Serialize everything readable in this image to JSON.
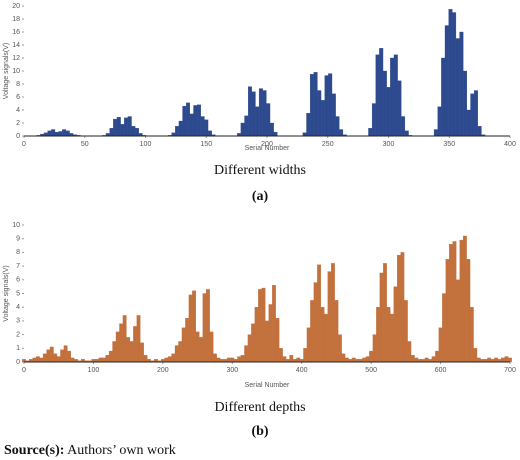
{
  "chart_data": [
    {
      "type": "bar",
      "x_label": "Serial Number",
      "y_label": "Voltage signals(V)",
      "caption": "Different widths",
      "panel": "(a)",
      "color": "#2e4a8e",
      "xlim": [
        0,
        400
      ],
      "xticks": [
        0,
        50,
        100,
        150,
        200,
        250,
        300,
        350,
        400
      ],
      "ylim": [
        0,
        20
      ],
      "yticks": [
        0,
        2,
        4,
        6,
        8,
        10,
        12,
        14,
        16,
        18,
        20
      ],
      "x": [
        0,
        3,
        6,
        9,
        12,
        15,
        18,
        21,
        24,
        27,
        30,
        33,
        36,
        39,
        42,
        45,
        48,
        51,
        54,
        57,
        60,
        63,
        66,
        69,
        72,
        75,
        78,
        81,
        84,
        87,
        90,
        93,
        96,
        99,
        102,
        105,
        108,
        111,
        114,
        117,
        120,
        123,
        126,
        129,
        132,
        135,
        138,
        141,
        144,
        147,
        150,
        153,
        156,
        159,
        162,
        165,
        168,
        171,
        174,
        177,
        180,
        183,
        186,
        189,
        192,
        195,
        198,
        201,
        204,
        207,
        210,
        213,
        216,
        219,
        222,
        225,
        228,
        231,
        234,
        237,
        240,
        243,
        246,
        249,
        252,
        255,
        258,
        261,
        264,
        267,
        270,
        273,
        276,
        279,
        282,
        285,
        288,
        291,
        294,
        297,
        300,
        303,
        306,
        309,
        312,
        315,
        318,
        321,
        324,
        327,
        330,
        333,
        336,
        339,
        342,
        345,
        348,
        351,
        354,
        357,
        360,
        363,
        366,
        369,
        372,
        375,
        378,
        381,
        384,
        387,
        390,
        393,
        396,
        399
      ],
      "values": [
        0,
        0,
        0,
        0,
        0.1,
        0.3,
        0.5,
        0.8,
        1.0,
        0.6,
        0.7,
        1.0,
        0.8,
        0.4,
        0.2,
        0.1,
        0,
        0,
        0,
        0,
        0,
        0,
        0.1,
        0.4,
        1.2,
        2.6,
        2.9,
        1.8,
        2.8,
        3.0,
        1.5,
        1.2,
        0.4,
        0.1,
        0,
        0,
        0,
        0,
        0,
        0,
        0.1,
        0.5,
        1.5,
        2.3,
        4.6,
        5.1,
        3.4,
        4.7,
        4.8,
        3.0,
        2.5,
        0.8,
        0.2,
        0,
        0,
        0,
        0,
        0,
        0,
        0.4,
        2.0,
        3.1,
        7.6,
        6.8,
        4.5,
        7.3,
        7.0,
        5.0,
        2.0,
        0.6,
        0,
        0,
        0,
        0,
        0,
        0,
        0,
        0.5,
        3.5,
        9.5,
        9.8,
        7.0,
        5.5,
        9.3,
        9.6,
        6.5,
        3.0,
        1.0,
        0.2,
        0,
        0,
        0,
        0,
        0,
        0,
        1.2,
        5.0,
        12.5,
        13.5,
        10.0,
        7.5,
        12.0,
        12.5,
        8.5,
        3.0,
        0.8,
        0.1,
        0,
        0,
        0,
        0,
        0,
        0,
        1.0,
        4.5,
        12.0,
        17.0,
        19.5,
        19.0,
        15.0,
        16.0,
        10.0,
        4.0,
        6.5,
        7.0,
        1.5,
        0.2,
        0,
        0,
        0,
        0,
        0,
        0,
        0
      ]
    },
    {
      "type": "bar",
      "x_label": "Serial Number",
      "y_label": "Voltage signals(V)",
      "caption": "Different depths",
      "panel": "(b)",
      "color": "#c2703c",
      "xlim": [
        0,
        700
      ],
      "xticks": [
        0,
        100,
        200,
        300,
        400,
        500,
        600,
        700
      ],
      "ylim": [
        0,
        10
      ],
      "yticks": [
        0,
        1,
        2,
        3,
        4,
        5,
        6,
        7,
        8,
        9,
        10
      ],
      "x": [
        0,
        5,
        10,
        15,
        20,
        25,
        30,
        35,
        40,
        45,
        50,
        55,
        60,
        65,
        70,
        75,
        80,
        85,
        90,
        95,
        100,
        105,
        110,
        115,
        120,
        125,
        130,
        135,
        140,
        145,
        150,
        155,
        160,
        165,
        170,
        175,
        180,
        185,
        190,
        195,
        200,
        205,
        210,
        215,
        220,
        225,
        230,
        235,
        240,
        245,
        250,
        255,
        260,
        265,
        270,
        275,
        280,
        285,
        290,
        295,
        300,
        305,
        310,
        315,
        320,
        325,
        330,
        335,
        340,
        345,
        350,
        355,
        360,
        365,
        370,
        375,
        380,
        385,
        390,
        395,
        400,
        405,
        410,
        415,
        420,
        425,
        430,
        435,
        440,
        445,
        450,
        455,
        460,
        465,
        470,
        475,
        480,
        485,
        490,
        495,
        500,
        505,
        510,
        515,
        520,
        525,
        530,
        535,
        540,
        545,
        550,
        555,
        560,
        565,
        570,
        575,
        580,
        585,
        590,
        595,
        600,
        605,
        610,
        615,
        620,
        625,
        630,
        635,
        640,
        645,
        650,
        655,
        660,
        665,
        670,
        675,
        680,
        685,
        690,
        695,
        700
      ],
      "values": [
        0.2,
        0.1,
        0.2,
        0.3,
        0.4,
        0.3,
        0.6,
        0.9,
        1.1,
        0.6,
        0.4,
        0.9,
        1.2,
        0.8,
        0.3,
        0.2,
        0.1,
        0.2,
        0.1,
        0.1,
        0.2,
        0.2,
        0.3,
        0.3,
        0.5,
        0.8,
        1.5,
        2.2,
        2.8,
        3.4,
        1.8,
        1.5,
        2.6,
        3.4,
        1.4,
        0.5,
        0.2,
        0.1,
        0.2,
        0.1,
        0.2,
        0.3,
        0.4,
        0.6,
        1.2,
        1.5,
        2.5,
        3.2,
        4.9,
        5.2,
        2.2,
        1.8,
        5.0,
        5.3,
        2.2,
        0.6,
        0.3,
        0.2,
        0.2,
        0.3,
        0.3,
        0.2,
        0.4,
        0.5,
        1.2,
        2.0,
        2.8,
        4.0,
        5.3,
        5.4,
        3.0,
        4.2,
        5.6,
        3.2,
        1.0,
        0.4,
        0.2,
        0.5,
        0.2,
        0.3,
        0.2,
        1.0,
        2.5,
        4.5,
        5.8,
        7.1,
        4.0,
        3.5,
        6.6,
        7.2,
        4.5,
        2.0,
        0.6,
        0.3,
        0.2,
        0.3,
        0.2,
        0.2,
        0.3,
        0.4,
        0.8,
        2.0,
        4.0,
        6.5,
        7.2,
        4.0,
        3.5,
        5.5,
        7.8,
        8.0,
        4.5,
        1.5,
        0.5,
        0.3,
        0.2,
        0.2,
        0.3,
        0.2,
        0.4,
        0.8,
        2.5,
        5.0,
        7.5,
        8.6,
        8.8,
        6.0,
        8.9,
        9.2,
        7.5,
        4.0,
        1.0,
        0.3,
        0.2,
        0.2,
        0.3,
        0.2,
        0.3,
        0.2,
        0.3,
        0.4,
        0.3
      ]
    }
  ],
  "source": {
    "label": "Source(s):",
    "text": "Authors’ own work"
  }
}
